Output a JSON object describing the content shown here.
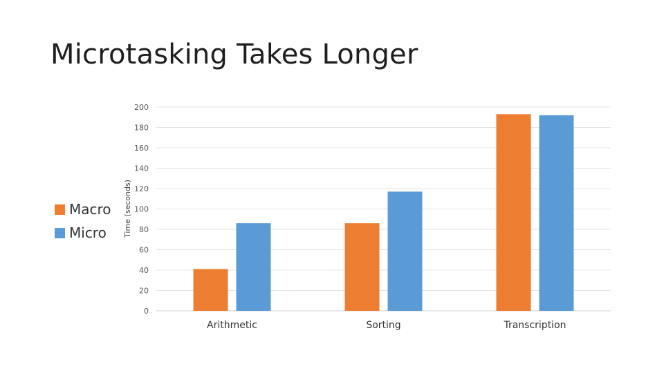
{
  "slide": {
    "title": "Microtasking Takes Longer"
  },
  "chart_data": {
    "type": "bar",
    "title": "",
    "xlabel": "",
    "ylabel": "Time (seconds)",
    "ylim": [
      0,
      200
    ],
    "yticks": [
      0,
      20,
      40,
      60,
      80,
      100,
      120,
      140,
      160,
      180,
      200
    ],
    "categories": [
      "Arithmetic",
      "Sorting",
      "Transcription"
    ],
    "series": [
      {
        "name": "Macro",
        "color": "#ED7D31",
        "values": [
          41,
          86,
          193
        ]
      },
      {
        "name": "Micro",
        "color": "#5B9BD5",
        "values": [
          86,
          117,
          192
        ]
      }
    ],
    "grid": true,
    "legend": "left"
  }
}
